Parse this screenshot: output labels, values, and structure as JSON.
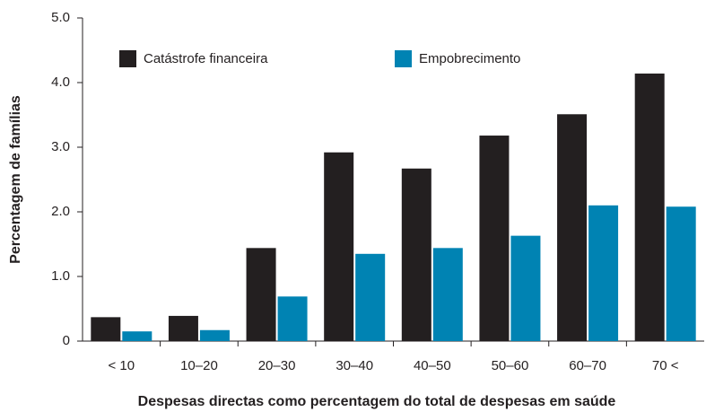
{
  "chart_data": {
    "type": "bar",
    "x_label": "Despesas directas como percentagem do total de despesas em saúde",
    "y_label": "Percentagem de famílias",
    "categories": [
      "< 10",
      "10–20",
      "20–30",
      "30–40",
      "40–50",
      "50–60",
      "60–70",
      "70 <"
    ],
    "series": [
      {
        "name": "Catástrofe financeira",
        "color": "#231f20",
        "values": [
          0.37,
          0.39,
          1.44,
          2.92,
          2.67,
          3.18,
          3.51,
          4.14
        ]
      },
      {
        "name": "Empobrecimento",
        "color": "#0083b3",
        "values": [
          0.15,
          0.17,
          0.69,
          1.35,
          1.44,
          1.63,
          2.1,
          2.08
        ]
      }
    ],
    "ylim": [
      0,
      5
    ],
    "yticks": [
      0,
      {
        "value": 1,
        "label": "1.0"
      },
      {
        "value": 2,
        "label": "2.0"
      },
      {
        "value": 3,
        "label": "3.0"
      },
      {
        "value": 4,
        "label": "4.0"
      },
      {
        "value": 5,
        "label": "5.0"
      }
    ],
    "grid": false,
    "legend": "top"
  }
}
